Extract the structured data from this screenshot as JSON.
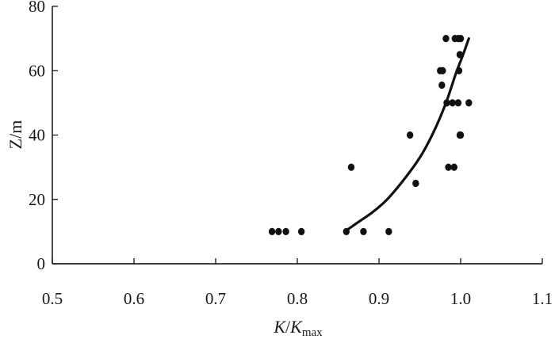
{
  "chart_data": {
    "type": "scatter",
    "title": "",
    "xlabel": {
      "main": "K",
      "sep": "/",
      "denom": "K",
      "sub": "max"
    },
    "ylabel": "Z/m",
    "xlim": [
      0.5,
      1.1
    ],
    "ylim": [
      0,
      80
    ],
    "xticks": [
      0.5,
      0.6,
      0.7,
      0.8,
      0.9,
      1.0,
      1.1
    ],
    "xtick_labels": [
      "0.5",
      "0.6",
      "0.7",
      "0.8",
      "0.9",
      "1.0",
      "1.1"
    ],
    "yticks": [
      0,
      20,
      40,
      60,
      80
    ],
    "ytick_labels": [
      "0",
      "20",
      "40",
      "60",
      "80"
    ],
    "grid": false,
    "points": [
      {
        "x": 0.769,
        "y": 10
      },
      {
        "x": 0.777,
        "y": 10
      },
      {
        "x": 0.786,
        "y": 10
      },
      {
        "x": 0.805,
        "y": 10
      },
      {
        "x": 0.86,
        "y": 10
      },
      {
        "x": 0.881,
        "y": 10
      },
      {
        "x": 0.912,
        "y": 10
      },
      {
        "x": 0.945,
        "y": 25
      },
      {
        "x": 0.866,
        "y": 30
      },
      {
        "x": 0.985,
        "y": 30
      },
      {
        "x": 0.992,
        "y": 30
      },
      {
        "x": 0.938,
        "y": 40
      },
      {
        "x": 0.999,
        "y": 40
      },
      {
        "x": 1.0,
        "y": 40
      },
      {
        "x": 0.983,
        "y": 50
      },
      {
        "x": 0.99,
        "y": 50
      },
      {
        "x": 0.997,
        "y": 50
      },
      {
        "x": 1.01,
        "y": 50
      },
      {
        "x": 0.977,
        "y": 55.5
      },
      {
        "x": 0.975,
        "y": 60
      },
      {
        "x": 0.978,
        "y": 60
      },
      {
        "x": 0.998,
        "y": 60
      },
      {
        "x": 0.999,
        "y": 65
      },
      {
        "x": 0.982,
        "y": 70
      },
      {
        "x": 0.993,
        "y": 70
      },
      {
        "x": 0.997,
        "y": 70
      },
      {
        "x": 1.0,
        "y": 70
      }
    ],
    "fit_curve": [
      {
        "x": 0.858,
        "y": 10
      },
      {
        "x": 0.875,
        "y": 13
      },
      {
        "x": 0.892,
        "y": 16
      },
      {
        "x": 0.91,
        "y": 20
      },
      {
        "x": 0.93,
        "y": 26
      },
      {
        "x": 0.95,
        "y": 33
      },
      {
        "x": 0.967,
        "y": 41
      },
      {
        "x": 0.982,
        "y": 50
      },
      {
        "x": 0.994,
        "y": 59
      },
      {
        "x": 1.003,
        "y": 65
      },
      {
        "x": 1.01,
        "y": 70
      }
    ]
  }
}
